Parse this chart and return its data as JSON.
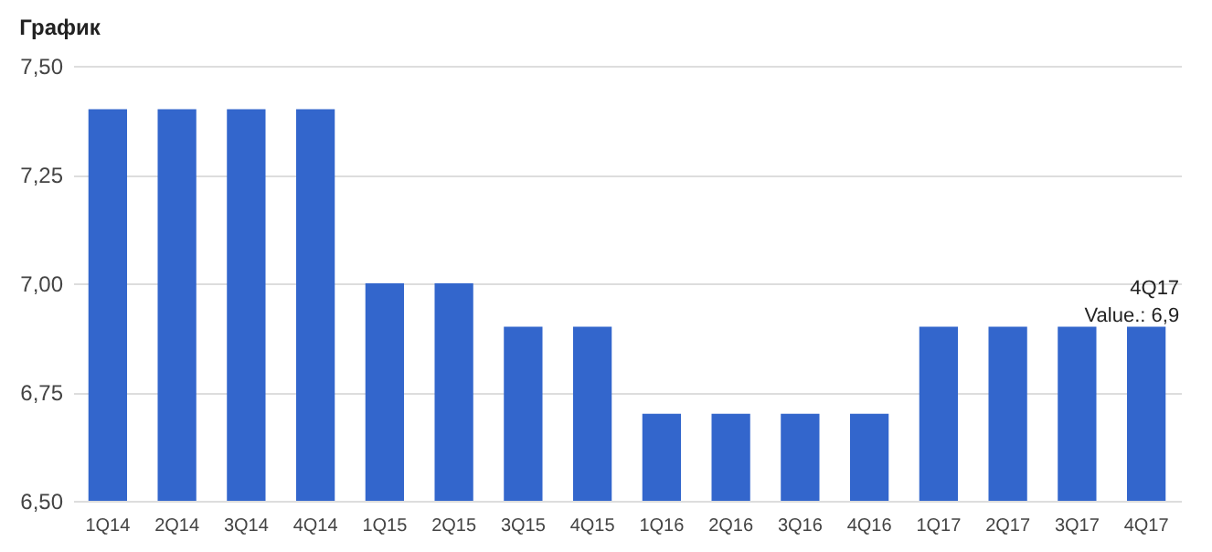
{
  "chart_data": {
    "type": "bar",
    "title": "График",
    "categories": [
      "1Q14",
      "2Q14",
      "3Q14",
      "4Q14",
      "1Q15",
      "2Q15",
      "3Q15",
      "4Q15",
      "1Q16",
      "2Q16",
      "3Q16",
      "4Q16",
      "1Q17",
      "2Q17",
      "3Q17",
      "4Q17"
    ],
    "values": [
      7.4,
      7.4,
      7.4,
      7.4,
      7.0,
      7.0,
      6.9,
      6.9,
      6.7,
      6.7,
      6.7,
      6.7,
      6.9,
      6.9,
      6.9,
      6.9
    ],
    "color": "#3366cc",
    "ylim": [
      6.5,
      7.5
    ],
    "yticks": [
      {
        "value": 6.5,
        "label": "6,50"
      },
      {
        "value": 6.75,
        "label": "6,75"
      },
      {
        "value": 7.0,
        "label": "7,00"
      },
      {
        "value": 7.25,
        "label": "7,25"
      },
      {
        "value": 7.5,
        "label": "7,50"
      }
    ],
    "grid": "y",
    "annotations": [
      {
        "text": "4Q17\nValue.: 6,9",
        "x": "4Q17",
        "y": 6.9
      }
    ]
  }
}
